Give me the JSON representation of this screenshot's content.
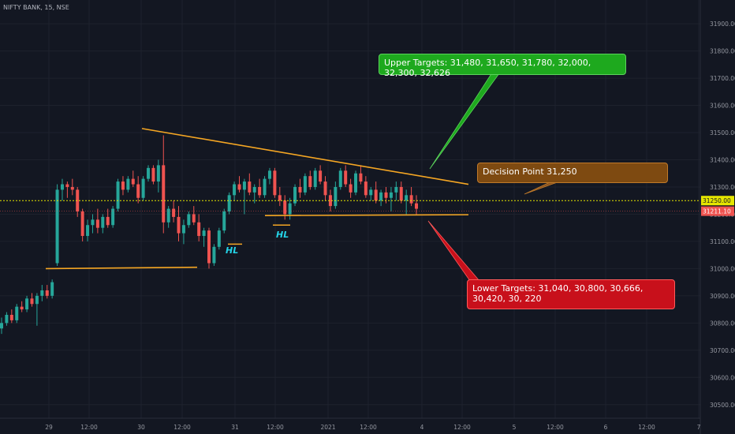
{
  "header": {
    "ticker": "NIFTY BANK, 15, NSE"
  },
  "chart_data": {
    "type": "candlestick",
    "title": "",
    "y_ticks": [
      "31900.00",
      "31800.00",
      "31700.00",
      "31600.00",
      "31500.00",
      "31400.00",
      "31300.00",
      "31200.00",
      "31100.00",
      "31000.00",
      "30900.00",
      "30800.00",
      "30700.00",
      "30600.00",
      "30500.00"
    ],
    "ylim": [
      30450,
      31970
    ],
    "x_ticks": [
      "29",
      "12:00",
      "30",
      "12:00",
      "31",
      "12:00",
      "2021",
      "12:00",
      "4",
      "12:00",
      "5",
      "12:00",
      "6",
      "12:00",
      "7"
    ],
    "last_price": "31211.10",
    "dotted_level": "31250.00",
    "colors": {
      "up": "#26a69a",
      "down": "#ef5350",
      "trendline": "#f5a623",
      "dotted": "#e5e500"
    },
    "candles": [
      [
        30780,
        30820,
        30760,
        30800
      ],
      [
        30800,
        30840,
        30790,
        30830
      ],
      [
        30830,
        30850,
        30800,
        30810
      ],
      [
        30810,
        30870,
        30800,
        30860
      ],
      [
        30860,
        30880,
        30840,
        30850
      ],
      [
        30850,
        30900,
        30840,
        30890
      ],
      [
        30890,
        30910,
        30860,
        30870
      ],
      [
        30870,
        30910,
        30790,
        30900
      ],
      [
        30900,
        30940,
        30880,
        30920
      ],
      [
        30920,
        30940,
        30890,
        30900
      ],
      [
        30900,
        30960,
        30890,
        30950
      ],
      [
        31020,
        31310,
        31010,
        31290
      ],
      [
        31290,
        31330,
        31250,
        31310
      ],
      [
        31310,
        31320,
        31260,
        31300
      ],
      [
        31300,
        31330,
        31270,
        31290
      ],
      [
        31290,
        31300,
        31190,
        31210
      ],
      [
        31210,
        31220,
        31100,
        31120
      ],
      [
        31120,
        31180,
        31100,
        31160
      ],
      [
        31160,
        31200,
        31130,
        31180
      ],
      [
        31180,
        31220,
        31130,
        31150
      ],
      [
        31150,
        31200,
        31130,
        31190
      ],
      [
        31190,
        31220,
        31150,
        31160
      ],
      [
        31160,
        31230,
        31150,
        31220
      ],
      [
        31220,
        31330,
        31210,
        31320
      ],
      [
        31320,
        31340,
        31270,
        31290
      ],
      [
        31290,
        31340,
        31280,
        31330
      ],
      [
        31330,
        31360,
        31300,
        31310
      ],
      [
        31310,
        31340,
        31240,
        31260
      ],
      [
        31260,
        31340,
        31250,
        31330
      ],
      [
        31330,
        31380,
        31320,
        31370
      ],
      [
        31370,
        31380,
        31310,
        31320
      ],
      [
        31320,
        31400,
        31280,
        31380
      ],
      [
        31380,
        31490,
        31130,
        31170
      ],
      [
        31170,
        31230,
        31150,
        31220
      ],
      [
        31220,
        31250,
        31170,
        31190
      ],
      [
        31190,
        31230,
        31100,
        31130
      ],
      [
        31130,
        31180,
        31090,
        31160
      ],
      [
        31160,
        31210,
        31150,
        31200
      ],
      [
        31200,
        31230,
        31160,
        31170
      ],
      [
        31170,
        31200,
        31100,
        31120
      ],
      [
        31120,
        31150,
        31080,
        31140
      ],
      [
        31140,
        31150,
        31000,
        31020
      ],
      [
        31020,
        31090,
        31010,
        31080
      ],
      [
        31080,
        31150,
        31070,
        31140
      ],
      [
        31140,
        31220,
        31130,
        31210
      ],
      [
        31210,
        31280,
        31200,
        31270
      ],
      [
        31270,
        31320,
        31250,
        31310
      ],
      [
        31310,
        31340,
        31280,
        31290
      ],
      [
        31290,
        31330,
        31200,
        31320
      ],
      [
        31320,
        31350,
        31270,
        31280
      ],
      [
        31280,
        31310,
        31240,
        31300
      ],
      [
        31300,
        31330,
        31260,
        31270
      ],
      [
        31270,
        31340,
        31260,
        31330
      ],
      [
        31330,
        31370,
        31310,
        31360
      ],
      [
        31360,
        31370,
        31260,
        31270
      ],
      [
        31270,
        31300,
        31230,
        31250
      ],
      [
        31250,
        31270,
        31180,
        31200
      ],
      [
        31200,
        31260,
        31180,
        31240
      ],
      [
        31240,
        31310,
        31230,
        31300
      ],
      [
        31300,
        31330,
        31260,
        31280
      ],
      [
        31280,
        31350,
        31270,
        31340
      ],
      [
        31340,
        31360,
        31290,
        31300
      ],
      [
        31300,
        31370,
        31290,
        31360
      ],
      [
        31360,
        31380,
        31310,
        31320
      ],
      [
        31320,
        31340,
        31250,
        31270
      ],
      [
        31270,
        31290,
        31210,
        31230
      ],
      [
        31230,
        31320,
        31220,
        31300
      ],
      [
        31300,
        31370,
        31290,
        31360
      ],
      [
        31360,
        31380,
        31300,
        31310
      ],
      [
        31310,
        31330,
        31260,
        31280
      ],
      [
        31280,
        31360,
        31270,
        31350
      ],
      [
        31350,
        31380,
        31310,
        31320
      ],
      [
        31320,
        31340,
        31260,
        31270
      ],
      [
        31270,
        31300,
        31250,
        31290
      ],
      [
        31290,
        31320,
        31240,
        31250
      ],
      [
        31250,
        31290,
        31230,
        31280
      ],
      [
        31280,
        31300,
        31240,
        31260
      ],
      [
        31260,
        31300,
        31210,
        31280
      ],
      [
        31280,
        31320,
        31250,
        31300
      ],
      [
        31300,
        31320,
        31240,
        31250
      ],
      [
        31250,
        31290,
        31200,
        31270
      ],
      [
        31270,
        31300,
        31230,
        31240
      ],
      [
        31240,
        31270,
        31200,
        31220
      ]
    ]
  },
  "annotations": {
    "upper_targets": "Upper Targets: 31,480, 31,650, 31,780, 32,000, 32,300, 32,626",
    "decision_point": "Decision Point 31,250",
    "lower_targets": "Lower Targets: 31,040, 30,800, 30,666, 30,420, 30, 220",
    "hl_1": "HL",
    "hl_2": "HL"
  }
}
